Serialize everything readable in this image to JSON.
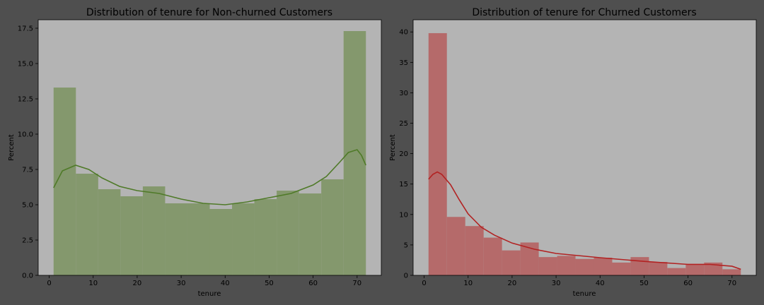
{
  "figure": {
    "background": "#4f4f4f",
    "axes_background": "#b4b4b4"
  },
  "chart_data": [
    {
      "type": "histogram",
      "title": "Distribution of tenure for Non-churned Customers",
      "xlabel": "tenure",
      "ylabel": "Percent",
      "xlim": [
        -2.5,
        75.5
      ],
      "ylim": [
        0,
        18.1
      ],
      "xticks": [
        "0",
        "10",
        "20",
        "30",
        "40",
        "50",
        "60",
        "70"
      ],
      "yticks": [
        "0.0",
        "2.5",
        "5.0",
        "7.5",
        "10.0",
        "12.5",
        "15.0",
        "17.5"
      ],
      "bin_start": 1,
      "bin_width": 5.0714,
      "values": [
        13.3,
        7.2,
        6.1,
        5.6,
        6.3,
        5.1,
        5.1,
        4.7,
        5.1,
        5.4,
        6.0,
        5.8,
        6.8,
        17.3
      ],
      "bar_color": "#84986d",
      "kde_color": "#4f7a28",
      "kde": {
        "x": [
          1,
          3,
          6,
          9,
          12,
          16,
          20,
          25,
          30,
          35,
          40,
          45,
          50,
          55,
          60,
          63,
          66,
          68,
          70,
          71,
          72
        ],
        "y": [
          6.2,
          7.4,
          7.8,
          7.5,
          6.9,
          6.3,
          6.0,
          5.8,
          5.4,
          5.1,
          5.0,
          5.2,
          5.5,
          5.8,
          6.4,
          7.0,
          8.0,
          8.7,
          8.9,
          8.5,
          7.8
        ]
      },
      "grid": false
    },
    {
      "type": "histogram",
      "title": "Distribution of tenure for Churned Customers",
      "xlabel": "tenure",
      "ylabel": "Percent",
      "xlim": [
        -2.5,
        75.5
      ],
      "ylim": [
        0,
        42
      ],
      "xticks": [
        "0",
        "10",
        "20",
        "30",
        "40",
        "50",
        "60",
        "70"
      ],
      "yticks": [
        "0",
        "5",
        "10",
        "15",
        "20",
        "25",
        "30",
        "35",
        "40"
      ],
      "bin_start": 1,
      "bin_width": 4.1765,
      "values": [
        39.8,
        9.6,
        8.1,
        6.2,
        4.1,
        5.4,
        3.0,
        3.2,
        2.7,
        2.9,
        2.1,
        3.0,
        2.2,
        1.2,
        1.9,
        2.1,
        1.0
      ],
      "bar_color": "#b56a6a",
      "kde_color": "#b22222",
      "kde": {
        "x": [
          1,
          2,
          3,
          4,
          6,
          8,
          10,
          13,
          16,
          20,
          25,
          30,
          40,
          50,
          60,
          65,
          70,
          72
        ],
        "y": [
          15.8,
          16.6,
          17.0,
          16.6,
          14.9,
          12.4,
          10.1,
          7.9,
          6.6,
          5.3,
          4.3,
          3.6,
          2.9,
          2.3,
          1.8,
          1.8,
          1.5,
          1.0
        ]
      },
      "grid": false
    }
  ]
}
